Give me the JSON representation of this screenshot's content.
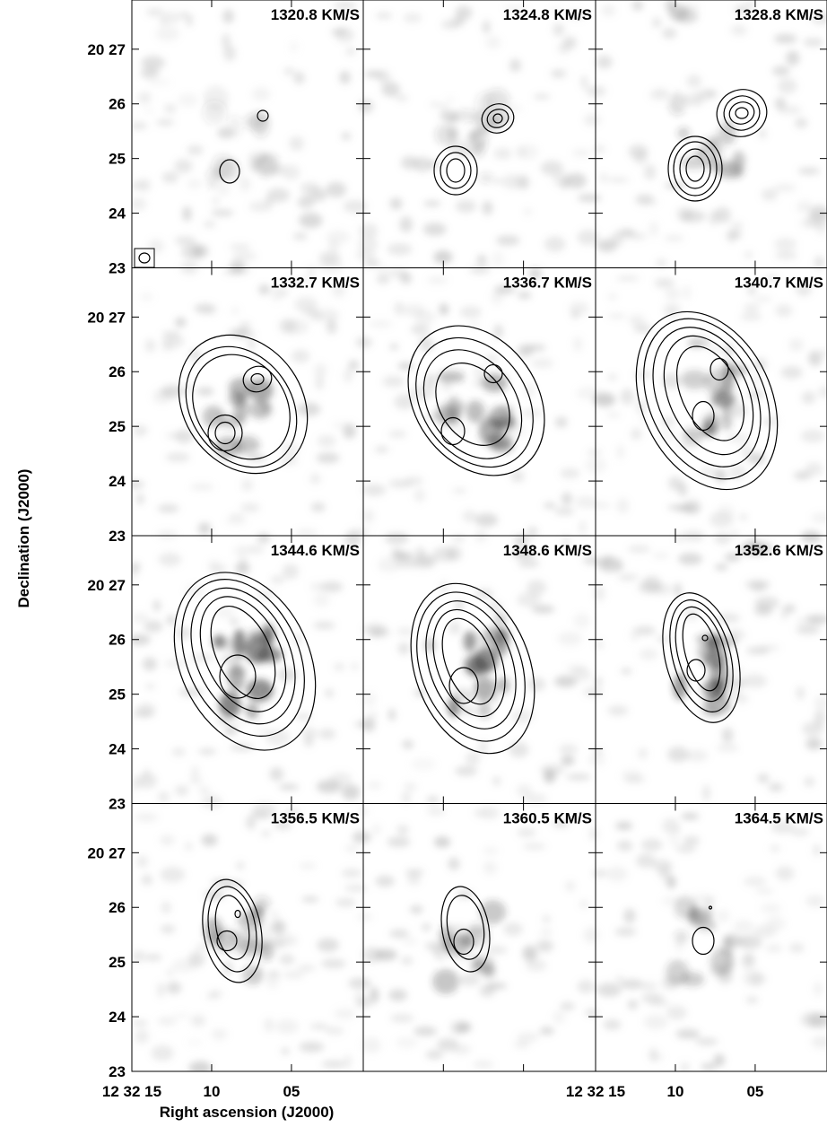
{
  "chart_data": {
    "type": "channel-map",
    "panels": [
      "1320.8 KM/S",
      "1324.8 KM/S",
      "1328.8 KM/S",
      "1332.7 KM/S",
      "1336.7 KM/S",
      "1340.7 KM/S",
      "1344.6 KM/S",
      "1348.6 KM/S",
      "1352.6 KM/S",
      "1356.5 KM/S",
      "1360.5 KM/S",
      "1364.5 KM/S"
    ],
    "x_label": "Right ascension (J2000)",
    "y_label": "Declination (J2000)",
    "xlim": [
      15,
      0.5
    ],
    "xticks": [
      {
        "value": 15,
        "label": "12 32 15"
      },
      10,
      {
        "value": 5,
        "label": "05"
      }
    ],
    "ylim": [
      23,
      27.9
    ],
    "yticks": [
      {
        "value": 27,
        "label": "20 27"
      },
      26,
      25,
      24,
      23
    ]
  }
}
